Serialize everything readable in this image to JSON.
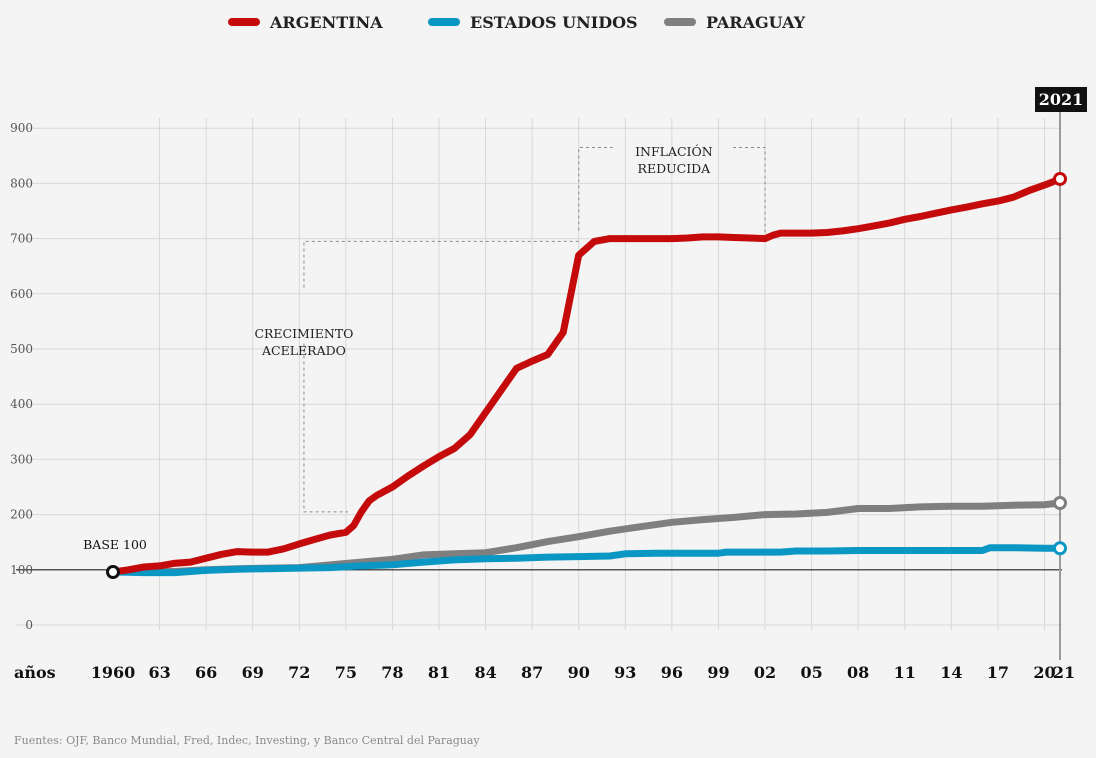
{
  "legend": {
    "argentina": "ARGENTINA",
    "usa": "ESTADOS UNIDOS",
    "paraguay": "PARAGUAY"
  },
  "colors": {
    "argentina": "#c40a0a",
    "usa": "#0b97c4",
    "paraguay": "#7f7f7f",
    "grid": "#d8d8d8",
    "base": "#222222"
  },
  "source": "Fuentes: OJF, Banco Mundial, Fred, Indec, Investing, y Banco Central del Paraguay",
  "chart_data": {
    "type": "line",
    "x_axis_label": "años",
    "x_tick_labels": [
      "1960",
      "63",
      "66",
      "69",
      "72",
      "75",
      "78",
      "81",
      "84",
      "87",
      "90",
      "93",
      "96",
      "99",
      "02",
      "05",
      "08",
      "11",
      "14",
      "17",
      "20",
      "21"
    ],
    "x_tick_values": [
      1960,
      1963,
      1966,
      1969,
      1972,
      1975,
      1978,
      1981,
      1984,
      1987,
      1990,
      1993,
      1996,
      1999,
      2002,
      2005,
      2008,
      2011,
      2014,
      2017,
      2020,
      2021
    ],
    "xlim": [
      1960,
      2021
    ],
    "y_ticks": [
      0,
      100,
      200,
      300,
      400,
      500,
      600,
      700,
      800,
      900
    ],
    "ylim": [
      0,
      900
    ],
    "highlight_year": "2021",
    "base_label": "BASE 100",
    "annotations": [
      {
        "lines": [
          "CRECIMIENTO",
          "ACELERADO"
        ],
        "x_from": 1972.3,
        "x_to": 1990,
        "y_low": 205,
        "y_high": 695
      },
      {
        "lines": [
          "INFLACIÓN",
          "REDUCIDA"
        ],
        "x_from": 1990,
        "x_to": 2002,
        "y_low": 715,
        "y_high": 865
      }
    ],
    "series": [
      {
        "name": "ARGENTINA",
        "x": [
          1960,
          1961,
          1962,
          1963,
          1964,
          1965,
          1966,
          1967,
          1968,
          1969,
          1970,
          1971,
          1972,
          1973,
          1974,
          1975,
          1975.5,
          1976,
          1976.5,
          1977,
          1978,
          1979,
          1980,
          1981,
          1982,
          1983,
          1984,
          1985,
          1986,
          1987,
          1988,
          1989,
          1990,
          1991,
          1992,
          1993,
          1994,
          1995,
          1996,
          1997,
          1998,
          1999,
          2000,
          2001,
          2002,
          2002.5,
          2003,
          2004,
          2005,
          2006,
          2007,
          2008,
          2009,
          2010,
          2011,
          2012,
          2013,
          2014,
          2015,
          2016,
          2017,
          2018,
          2019,
          2020,
          2021
        ],
        "y": [
          96,
          100,
          105,
          107,
          112,
          114,
          121,
          128,
          133,
          132,
          132,
          138,
          147,
          155,
          163,
          168,
          180,
          205,
          225,
          235,
          250,
          270,
          288,
          305,
          320,
          345,
          385,
          425,
          465,
          478,
          490,
          530,
          670,
          695,
          700,
          700,
          700,
          700,
          700,
          701,
          703,
          703,
          702,
          701,
          700,
          706,
          710,
          710,
          710,
          711,
          714,
          718,
          723,
          728,
          735,
          740,
          746,
          752,
          757,
          763,
          768,
          775,
          787,
          797,
          808
        ]
      },
      {
        "name": "ESTADOS UNIDOS",
        "x": [
          1960,
          1962,
          1964,
          1966,
          1968,
          1970,
          1972,
          1974,
          1976,
          1978,
          1980,
          1982,
          1984,
          1986,
          1988,
          1990,
          1992,
          1993,
          1995,
          1997,
          1999,
          1999.5,
          2001,
          2003,
          2004,
          2006,
          2008,
          2010,
          2012,
          2014,
          2016,
          2016.5,
          2018,
          2020,
          2021
        ],
        "y": [
          96,
          95,
          95,
          99,
          101,
          102,
          103,
          104,
          107,
          109,
          114,
          118,
          120,
          121,
          123,
          124,
          125,
          129,
          130,
          130,
          130,
          132,
          132,
          132,
          134,
          134,
          135,
          135,
          135,
          135,
          135,
          140,
          140,
          139,
          139
        ]
      },
      {
        "name": "PARAGUAY",
        "x": [
          1960,
          1962,
          1964,
          1966,
          1968,
          1970,
          1972,
          1974,
          1976,
          1978,
          1980,
          1982,
          1984,
          1986,
          1988,
          1990,
          1992,
          1994,
          1996,
          1998,
          2000,
          2002,
          2004,
          2006,
          2008,
          2010,
          2012,
          2014,
          2016,
          2018,
          2020,
          2021
        ],
        "y": [
          96,
          97,
          97,
          100,
          102,
          103,
          104,
          109,
          114,
          119,
          127,
          129,
          131,
          140,
          151,
          160,
          170,
          178,
          186,
          191,
          195,
          200,
          201,
          204,
          211,
          211,
          214,
          215,
          215,
          217,
          218,
          221
        ]
      }
    ]
  }
}
